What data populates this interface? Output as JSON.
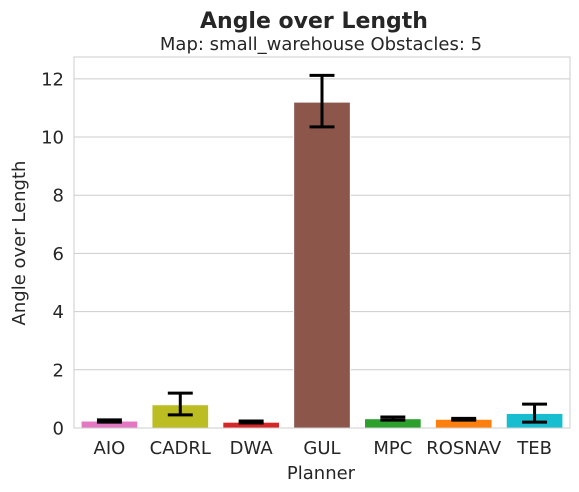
{
  "chart_data": {
    "type": "bar",
    "title": "Angle over Length",
    "subtitle": "Map: small_warehouse Obstacles: 5",
    "xlabel": "Planner",
    "ylabel": "Angle over Length",
    "ylim": [
      0,
      12.75
    ],
    "yticks": [
      0,
      2,
      4,
      6,
      8,
      10,
      12
    ],
    "grid": "y",
    "categories": [
      "AIO",
      "CADRL",
      "DWA",
      "GUL",
      "MPC",
      "ROSNAV",
      "TEB"
    ],
    "values": [
      0.24,
      0.8,
      0.2,
      11.2,
      0.32,
      0.3,
      0.5
    ],
    "error_low": [
      0.2,
      0.45,
      0.17,
      10.35,
      0.27,
      0.27,
      0.2
    ],
    "error_high": [
      0.28,
      1.2,
      0.24,
      12.12,
      0.38,
      0.33,
      0.82
    ],
    "colors": [
      "#e377c2",
      "#bcbd22",
      "#d62728",
      "#8c564b",
      "#2ca02c",
      "#ff7f0e",
      "#17becf"
    ]
  }
}
